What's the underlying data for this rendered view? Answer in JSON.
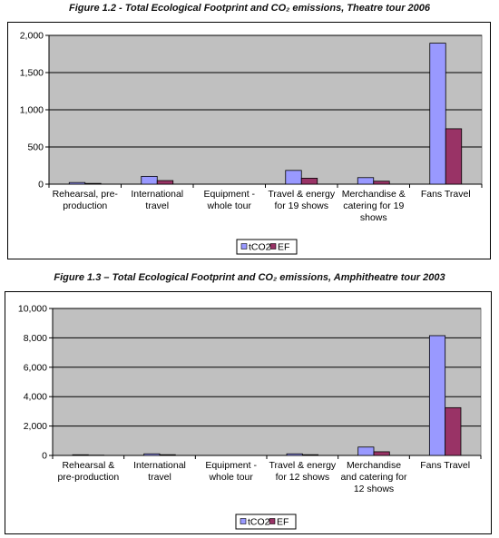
{
  "colors": {
    "plot_bg": "#c0c0c0",
    "tco2": "#9999ff",
    "ef": "#993366",
    "gridline": "#000000"
  },
  "figures": [
    {
      "caption": "Figure 1.2 - Total Ecological Footprint and CO₂ emissions, Theatre tour 2006"
    },
    {
      "caption": "Figure 1.3 – Total Ecological Footprint and CO₂ emissions, Amphitheatre tour 2003"
    }
  ],
  "chart_data": [
    {
      "type": "bar",
      "title": "",
      "xlabel": "",
      "ylabel": "",
      "ylim": [
        0,
        2000
      ],
      "yticks": [
        0,
        500,
        1000,
        1500,
        2000
      ],
      "ytick_labels": [
        "0",
        "500",
        "1,000",
        "1,500",
        "2,000"
      ],
      "grid": true,
      "legend_position": "bottom",
      "categories": [
        [
          "Rehearsal, pre-",
          "production"
        ],
        [
          "International",
          "travel"
        ],
        [
          "Equipment -",
          "whole tour"
        ],
        [
          "Travel & energy",
          "for 19 shows"
        ],
        [
          "Merchandise &",
          "catering for 19",
          "shows"
        ],
        [
          "Fans Travel"
        ]
      ],
      "series": [
        {
          "name": "tCO2",
          "color": "#9999ff",
          "values": [
            22,
            105,
            0,
            185,
            88,
            1895
          ]
        },
        {
          "name": "EF",
          "color": "#993366",
          "values": [
            10,
            48,
            0,
            80,
            40,
            745
          ]
        }
      ]
    },
    {
      "type": "bar",
      "title": "",
      "xlabel": "",
      "ylabel": "",
      "ylim": [
        0,
        10000
      ],
      "yticks": [
        0,
        2000,
        4000,
        6000,
        8000,
        10000
      ],
      "ytick_labels": [
        "0",
        "2,000",
        "4,000",
        "6,000",
        "8,000",
        "10,000"
      ],
      "grid": true,
      "legend_position": "bottom",
      "categories": [
        [
          "Rehearsal &",
          "pre-production"
        ],
        [
          "International",
          "travel"
        ],
        [
          "Equipment -",
          "whole tour"
        ],
        [
          "Travel & energy",
          "for 12 shows"
        ],
        [
          "Merchandise",
          "and catering for",
          "12 shows"
        ],
        [
          "Fans Travel"
        ]
      ],
      "series": [
        {
          "name": "tCO2",
          "color": "#9999ff",
          "values": [
            45,
            110,
            0,
            110,
            570,
            8150
          ]
        },
        {
          "name": "EF",
          "color": "#993366",
          "values": [
            20,
            50,
            0,
            50,
            250,
            3250
          ]
        }
      ]
    }
  ]
}
